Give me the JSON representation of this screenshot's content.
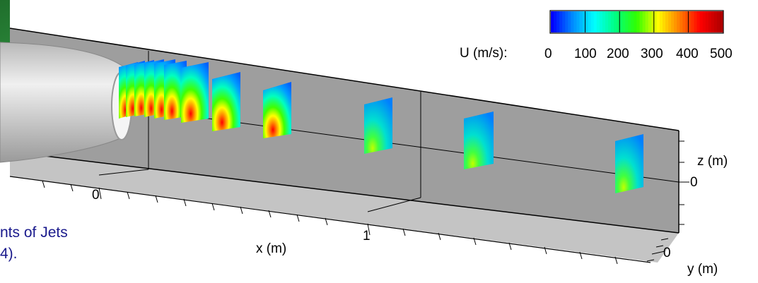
{
  "colorbar": {
    "variable_label": "U (m/s):",
    "ticks": [
      "0",
      "100",
      "200",
      "300",
      "400",
      "500"
    ],
    "colors": [
      "#0000ff",
      "#0090ff",
      "#00ffff",
      "#00ff80",
      "#30ff00",
      "#ffff00",
      "#ff8000",
      "#ff0000",
      "#b00000"
    ]
  },
  "axes": {
    "x_label": "x (m)",
    "x_ticks": [
      "0",
      "1"
    ],
    "z_label": "z (m)",
    "z_tick": "0",
    "y_label": "y (m)",
    "y_tick": "0"
  },
  "caption": {
    "line1": "nts of Jets",
    "line2": "4)."
  },
  "colors": {
    "back_wall": "#9a9a9a",
    "floor": "#c8c8c8",
    "background_photo": "#2c8a3a",
    "nozzle": "#d8d8d8"
  }
}
